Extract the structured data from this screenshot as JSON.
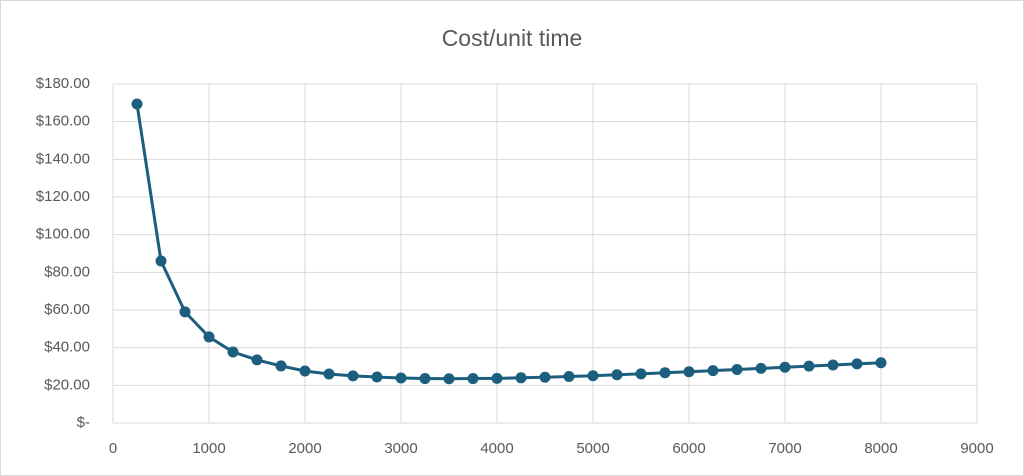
{
  "chart_data": {
    "type": "line",
    "title": "Cost/unit time",
    "x": [
      250,
      500,
      750,
      1000,
      1250,
      1500,
      1750,
      2000,
      2250,
      2500,
      2750,
      3000,
      3250,
      3500,
      3750,
      4000,
      4250,
      4500,
      4750,
      5000,
      5250,
      5500,
      5750,
      6000,
      6250,
      6500,
      6750,
      7000,
      7250,
      7500,
      7750,
      8000
    ],
    "values": [
      169.4,
      86,
      59,
      45.7,
      37.7,
      33.5,
      30.3,
      27.6,
      26,
      25,
      24.4,
      23.9,
      23.6,
      23.5,
      23.6,
      23.7,
      24,
      24.3,
      24.7,
      25.1,
      25.6,
      26.1,
      26.7,
      27.2,
      27.8,
      28.4,
      29,
      29.6,
      30.2,
      30.8,
      31.4,
      32
    ],
    "color": "#1b5e7e",
    "xlim": [
      0,
      9000
    ],
    "xticks": [
      0,
      1000,
      2000,
      3000,
      4000,
      5000,
      6000,
      7000,
      8000,
      9000
    ],
    "ylim": [
      0,
      180
    ],
    "yticks": [
      {
        "value": 0,
        "label": "$-"
      },
      {
        "value": 20,
        "label": "$20.00"
      },
      {
        "value": 40,
        "label": "$40.00"
      },
      {
        "value": 60,
        "label": "$60.00"
      },
      {
        "value": 80,
        "label": "$80.00"
      },
      {
        "value": 100,
        "label": "$100.00"
      },
      {
        "value": 120,
        "label": "$120.00"
      },
      {
        "value": 140,
        "label": "$140.00"
      },
      {
        "value": 160,
        "label": "$160.00"
      },
      {
        "value": 180,
        "label": "$180.00"
      }
    ],
    "grid": true
  }
}
